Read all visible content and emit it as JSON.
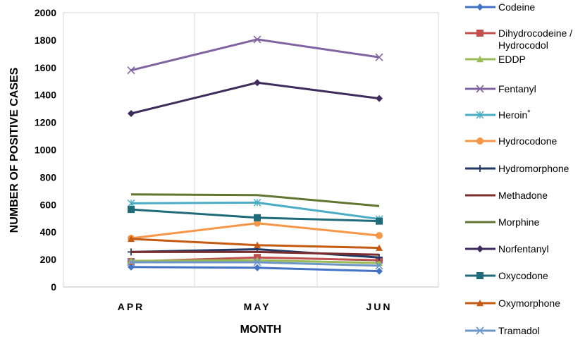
{
  "chart_data": {
    "type": "line",
    "xlabel": "MONTH",
    "ylabel": "NUMBER OF POSITIVE CASES",
    "categories": [
      "APR",
      "MAY",
      "JUN"
    ],
    "ylim": [
      0,
      2000
    ],
    "yticks": [
      0,
      200,
      400,
      600,
      800,
      1000,
      1200,
      1400,
      1600,
      1800,
      2000
    ],
    "grid": "vertical",
    "legend_position": "right",
    "series": [
      {
        "name": "Codeine",
        "values": [
          145,
          140,
          115
        ],
        "color": "#4472C4",
        "marker": "diamond"
      },
      {
        "name": "Dihydrocodeine / Hydrocodol",
        "values": [
          185,
          215,
          195
        ],
        "color": "#C0504D",
        "marker": "square"
      },
      {
        "name": "EDDP",
        "values": [
          190,
          195,
          175
        ],
        "color": "#9BBB59",
        "marker": "triangle"
      },
      {
        "name": "Fentanyl",
        "values": [
          1580,
          1805,
          1675
        ],
        "color": "#8064A2",
        "marker": "x"
      },
      {
        "name": "Heroin*",
        "values": [
          610,
          615,
          495
        ],
        "color": "#4BACC6",
        "marker": "star"
      },
      {
        "name": "Hydrocodone",
        "values": [
          355,
          465,
          375
        ],
        "color": "#F79646",
        "marker": "circle"
      },
      {
        "name": "Hydromorphone",
        "values": [
          255,
          275,
          215
        ],
        "color": "#1F3864",
        "marker": "plus"
      },
      {
        "name": "Methadone",
        "values": [
          255,
          255,
          235
        ],
        "color": "#7B2C2C",
        "marker": "none"
      },
      {
        "name": "Morphine",
        "values": [
          675,
          670,
          590
        ],
        "color": "#5F7530",
        "marker": "none"
      },
      {
        "name": "Norfentanyl",
        "values": [
          1265,
          1490,
          1375
        ],
        "color": "#3F2A5C",
        "marker": "diamond"
      },
      {
        "name": "Oxycodone",
        "values": [
          565,
          505,
          480
        ],
        "color": "#1F6B7A",
        "marker": "square"
      },
      {
        "name": "Oxymorphone",
        "values": [
          350,
          305,
          285
        ],
        "color": "#C55A11",
        "marker": "triangle"
      },
      {
        "name": "Tramadol",
        "values": [
          180,
          180,
          155
        ],
        "color": "#6D96C8",
        "marker": "x"
      }
    ]
  }
}
